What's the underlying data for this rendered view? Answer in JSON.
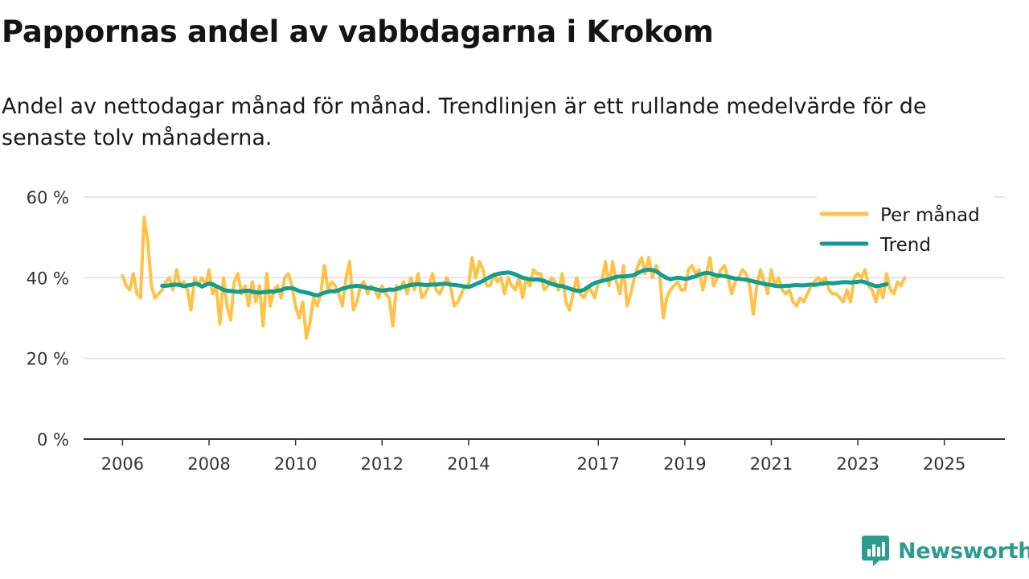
{
  "header": {
    "title": "Pappornas andel av vabbdagarna i Krokom",
    "subtitle": "Andel av nettodagar månad för månad. Trendlinjen är ett rullande medelvärde för de senaste tolv månaderna."
  },
  "brand": {
    "name": "Newsworthy",
    "icon": "newsworthy-logo-icon",
    "color": "#2a9d8f"
  },
  "colors": {
    "monthly": "#ffc247",
    "trend": "#0f9e90",
    "grid": "#dddddd",
    "axis": "#333333"
  },
  "chart_data": {
    "type": "line",
    "title": "Pappornas andel av vabbdagarna i Krokom",
    "subtitle": "Andel av nettodagar månad för månad. Trendlinjen är ett rullande medelvärde för de senaste tolv månaderna.",
    "xlabel": "",
    "ylabel": "",
    "x_unit": "year",
    "xlim": [
      2005.1,
      2026.4
    ],
    "ylim": [
      0,
      60
    ],
    "y_ticks": [
      0,
      20,
      40,
      60
    ],
    "y_tick_labels": [
      "0 %",
      "20 %",
      "40 %",
      "60 %"
    ],
    "x_ticks": [
      2006,
      2008,
      2010,
      2012,
      2014,
      2017,
      2019,
      2021,
      2023,
      2025
    ],
    "x_tick_labels": [
      "2006",
      "2008",
      "2010",
      "2012",
      "2014",
      "2017",
      "2019",
      "2021",
      "2023",
      "2025"
    ],
    "grid": true,
    "legend_position": "top-right",
    "start_year": 2006,
    "points_per_year": 12,
    "series": [
      {
        "name": "Per månad",
        "values": [
          40.5,
          38,
          37,
          41,
          36,
          35,
          55,
          49,
          38,
          35,
          36,
          37,
          39,
          40,
          37,
          42,
          38,
          39,
          37,
          32,
          40,
          38,
          40,
          38,
          42,
          36,
          38,
          28.5,
          40,
          33,
          29.5,
          39,
          41,
          36,
          38,
          33,
          39,
          34,
          38,
          28,
          41,
          33,
          37,
          38,
          35,
          40,
          41,
          38,
          33,
          30,
          34,
          25,
          29,
          35,
          33,
          36,
          43,
          37,
          39,
          38,
          36,
          33,
          40,
          44,
          32,
          34,
          38,
          39,
          36,
          38,
          37,
          35,
          38,
          36,
          35,
          28,
          38,
          37,
          39,
          36,
          40,
          37,
          41,
          35,
          36,
          38,
          41,
          37,
          36,
          38,
          40,
          38,
          33,
          34,
          36,
          38,
          38,
          45,
          40,
          44,
          42,
          38,
          38,
          41,
          39,
          40,
          36,
          40,
          38,
          37,
          40,
          35,
          40,
          38,
          42,
          41,
          41,
          37,
          38,
          40,
          39,
          37,
          41,
          34,
          32,
          36,
          40,
          36,
          35,
          37,
          37,
          35,
          39,
          39,
          44,
          38,
          44,
          39,
          36,
          43,
          33,
          36,
          40,
          43,
          45,
          41,
          45,
          40,
          43,
          41,
          30,
          35,
          37,
          38,
          39,
          37,
          37,
          42,
          43,
          41,
          42,
          37,
          41,
          45,
          38,
          40,
          42,
          43,
          40,
          36,
          39,
          40,
          42,
          41,
          38,
          31,
          38,
          42,
          39,
          36,
          42,
          38,
          40,
          37,
          36,
          37,
          34,
          33,
          35,
          34,
          36,
          38,
          39,
          40,
          39,
          40,
          37,
          36,
          36,
          35,
          34,
          37,
          34,
          40,
          41,
          40,
          42,
          38,
          37,
          34,
          38,
          35,
          41,
          37,
          36,
          39,
          38,
          40
        ]
      },
      {
        "name": "Trend",
        "start_year": 2006.9167,
        "values": [
          38,
          38,
          38.1,
          38.2,
          38.3,
          38.2,
          37.9,
          38.1,
          38.2,
          38.5,
          38.4,
          37.8,
          38.2,
          38.6,
          38.4,
          37.9,
          37.5,
          37,
          36.8,
          36.7,
          36.6,
          36.5,
          36.6,
          36.7,
          36.8,
          36.5,
          36.4,
          36.3,
          36.4,
          36.5,
          36.6,
          36.5,
          36.8,
          36.9,
          37.3,
          37.4,
          37.4,
          37.1,
          36.7,
          36.5,
          36.3,
          36.1,
          35.8,
          35.6,
          35.9,
          36.3,
          36.5,
          36.7,
          36.6,
          36.9,
          37.3,
          37.5,
          37.8,
          37.9,
          38,
          37.9,
          37.7,
          37.5,
          37.4,
          37.2,
          37,
          36.8,
          36.9,
          37.1,
          37,
          37.2,
          37.5,
          37.8,
          38,
          38.2,
          38.3,
          38.4,
          38.3,
          38.2,
          38.2,
          38.3,
          38.3,
          38.4,
          38.5,
          38.5,
          38.3,
          38.2,
          38.1,
          38,
          37.8,
          37.7,
          38,
          38.4,
          38.8,
          39.2,
          39.7,
          40.2,
          40.6,
          40.9,
          41.1,
          41.2,
          41.3,
          41.1,
          40.8,
          40.4,
          40,
          39.8,
          39.6,
          39.5,
          39.6,
          39.4,
          39.2,
          38.8,
          38.5,
          38.2,
          38,
          37.9,
          37.6,
          37.3,
          37,
          36.8,
          36.7,
          37,
          37.6,
          38.2,
          38.7,
          39,
          39.2,
          39.4,
          39.6,
          39.9,
          40.2,
          40.3,
          40.3,
          40.4,
          40.5,
          40.7,
          41.2,
          41.6,
          41.9,
          42,
          41.9,
          41.6,
          41,
          40.4,
          39.9,
          39.6,
          39.8,
          40,
          39.9,
          39.7,
          39.8,
          40.1,
          40.3,
          40.8,
          41,
          41.2,
          41.1,
          40.8,
          40.5,
          40.5,
          40.4,
          40.2,
          40,
          39.8,
          39.7,
          39.6,
          39.5,
          39.3,
          39.1,
          38.9,
          38.7,
          38.5,
          38.3,
          38.2,
          38,
          37.9,
          37.9,
          38,
          38,
          38.1,
          38.2,
          38.1,
          38.1,
          38.2,
          38.3,
          38.2,
          38.4,
          38.5,
          38.6,
          38.7,
          38.6,
          38.7,
          38.8,
          38.9,
          38.9,
          38.8,
          38.9,
          39,
          39.1,
          38.9,
          38.5,
          38.2,
          37.9,
          38,
          38.2,
          38.4
        ]
      }
    ]
  }
}
